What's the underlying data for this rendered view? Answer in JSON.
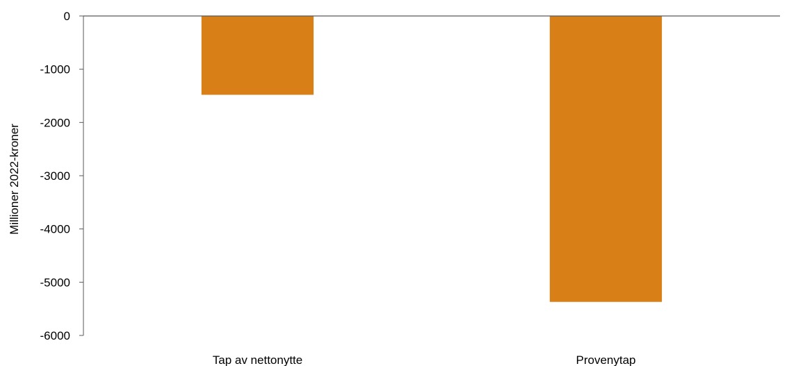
{
  "chart_data": {
    "type": "bar",
    "categories": [
      "Tap av nettonytte",
      "Provenytap"
    ],
    "values": [
      -1480,
      -5370
    ],
    "title": "",
    "xlabel": "",
    "ylabel": "Millioner 2022-kroner",
    "ylim": [
      -6000,
      0
    ],
    "yticks": [
      0,
      -1000,
      -2000,
      -3000,
      -4000,
      -5000,
      -6000
    ],
    "ytick_labels": [
      "0",
      "-1000",
      "-2000",
      "-3000",
      "-4000",
      "-5000",
      "-6000"
    ],
    "grid": false,
    "legend": "none",
    "bar_color": "#D87F17",
    "axis_color": "#595959"
  }
}
